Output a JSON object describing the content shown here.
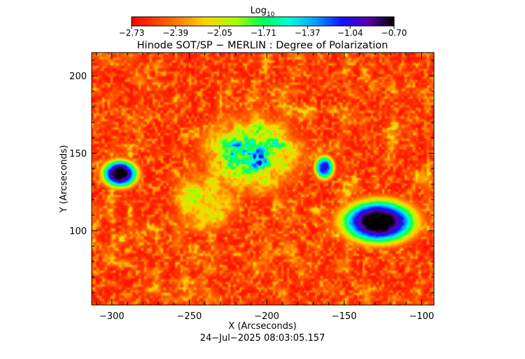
{
  "chart_data": {
    "type": "heatmap",
    "title": "Hinode SOT/SP − MERLIN : Degree of Polarization",
    "xlabel": "X (Arcseconds)",
    "ylabel": "Y (Arcseconds)",
    "timestamp": "24−Jul−2025 08:03:05.157",
    "xlim": [
      -313,
      -92
    ],
    "ylim": [
      52,
      215
    ],
    "x_ticks": [
      -300,
      -250,
      -200,
      -150,
      -100
    ],
    "x_tick_labels": [
      "−300",
      "−250",
      "−200",
      "−150",
      "−100"
    ],
    "y_ticks": [
      100,
      150,
      200
    ],
    "y_tick_labels": [
      "100",
      "150",
      "200"
    ],
    "colorbar": {
      "label_base": "Log",
      "label_subscript": "10",
      "min": -2.73,
      "max": -0.7,
      "ticks": [
        -2.73,
        -2.39,
        -2.05,
        -1.71,
        -1.37,
        -1.04,
        -0.7
      ],
      "tick_labels": [
        "−2.73",
        "−2.39",
        "−2.05",
        "−1.71",
        "−1.37",
        "−1.04",
        "−0.70"
      ]
    },
    "features": [
      {
        "name": "sunspot",
        "x": -128,
        "y": 106,
        "rx": 19,
        "ry": 11,
        "peak": -0.72
      },
      {
        "name": "pore",
        "x": -295,
        "y": 137,
        "rx": 9,
        "ry": 7,
        "peak": -0.76
      },
      {
        "name": "pore",
        "x": -163,
        "y": 141,
        "rx": 5,
        "ry": 6,
        "peak": -1.15
      },
      {
        "name": "plage",
        "x": -210,
        "y": 150,
        "rx": 28,
        "ry": 22,
        "peak": -1.25
      },
      {
        "name": "plage",
        "x": -240,
        "y": 120,
        "rx": 18,
        "ry": 18,
        "peak": -1.6
      }
    ]
  }
}
